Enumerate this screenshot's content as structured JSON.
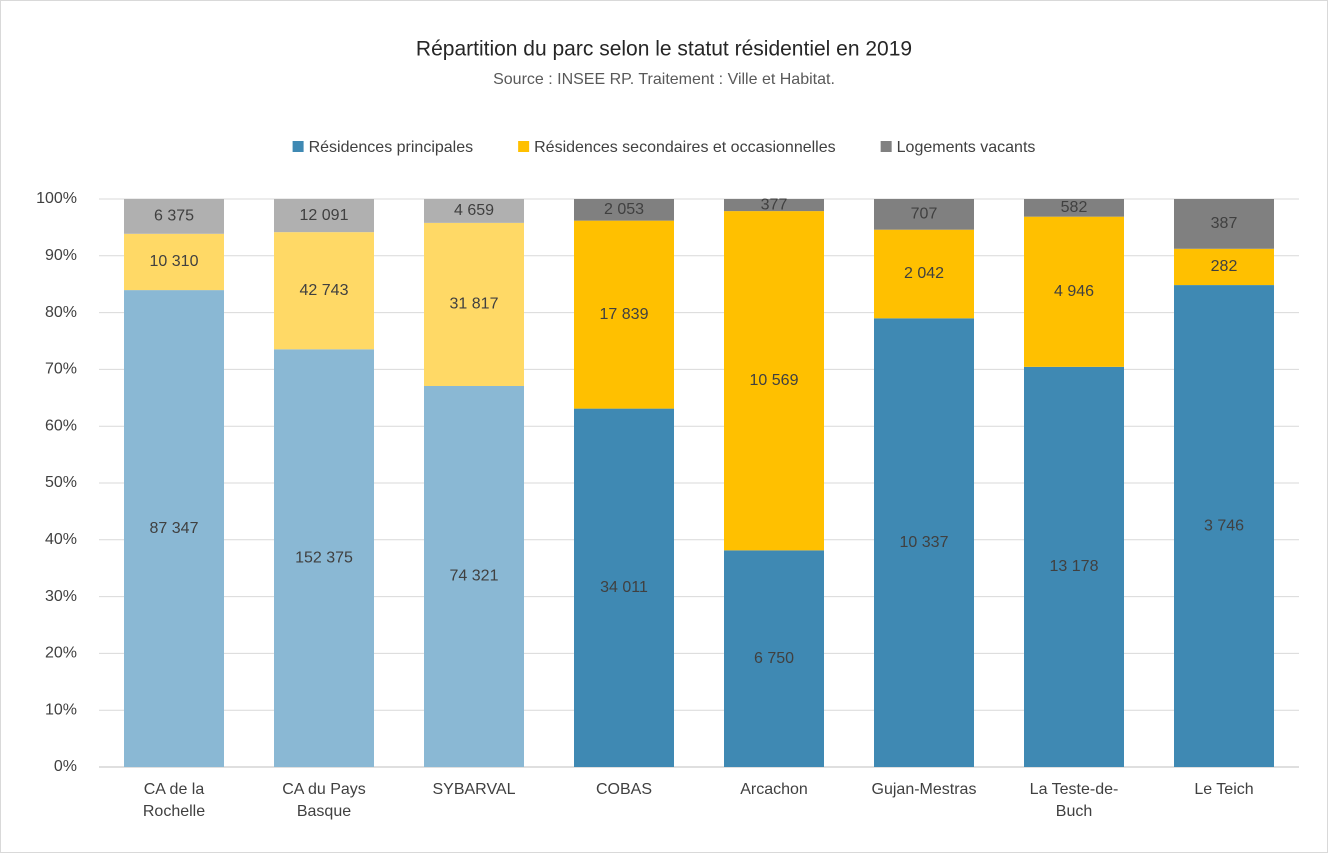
{
  "chart_data": {
    "type": "bar",
    "stacking": "percent",
    "title": "Répartition du parc selon le statut résidentiel en 2019",
    "subtitle": "Source : INSEE RP. Traitement : Ville et Habitat.",
    "categories": [
      "CA de la Rochelle",
      "CA du Pays Basque",
      "SYBARVAL",
      "COBAS",
      "Arcachon",
      "Gujan-Mestras",
      "La Teste-de-Buch",
      "Le Teich"
    ],
    "series": [
      {
        "name": "Résidences principales",
        "color": "#3f89b3",
        "colors": [
          "#8ab8d4",
          "#8ab8d4",
          "#8ab8d4",
          "#3f89b3",
          "#3f89b3",
          "#3f89b3",
          "#3f89b3",
          "#3f89b3"
        ],
        "values": [
          87347,
          152375,
          74321,
          34011,
          6750,
          10337,
          13178,
          3746
        ],
        "value_labels": [
          "87 347",
          "152 375",
          "74 321",
          "34 011",
          "6 750",
          "10 337",
          "13 178",
          "3 746"
        ]
      },
      {
        "name": "Résidences secondaires et occasionnelles",
        "color": "#ffc000",
        "colors": [
          "#ffd966",
          "#ffd966",
          "#ffd966",
          "#ffc000",
          "#ffc000",
          "#ffc000",
          "#ffc000",
          "#ffc000"
        ],
        "values": [
          10310,
          42743,
          31817,
          17839,
          10569,
          2042,
          4946,
          282
        ],
        "value_labels": [
          "10 310",
          "42 743",
          "31 817",
          "17 839",
          "10 569",
          "2 042",
          "4 946",
          "282"
        ]
      },
      {
        "name": "Logements vacants",
        "color": "#808080",
        "colors": [
          "#b0b0b0",
          "#b0b0b0",
          "#b0b0b0",
          "#808080",
          "#808080",
          "#808080",
          "#808080",
          "#808080"
        ],
        "values": [
          6375,
          12091,
          4659,
          2053,
          377,
          707,
          582,
          387
        ],
        "value_labels": [
          "6 375",
          "12 091",
          "4 659",
          "2 053",
          "377",
          "707",
          "582",
          "387"
        ]
      }
    ],
    "ylim": [
      0,
      100
    ],
    "yticks": [
      {
        "value": 0,
        "label": "0%"
      },
      {
        "value": 10,
        "label": "10%"
      },
      {
        "value": 20,
        "label": "20%"
      },
      {
        "value": 30,
        "label": "30%"
      },
      {
        "value": 40,
        "label": "40%"
      },
      {
        "value": 50,
        "label": "50%"
      },
      {
        "value": 60,
        "label": "60%"
      },
      {
        "value": 70,
        "label": "70%"
      },
      {
        "value": 80,
        "label": "80%"
      },
      {
        "value": 90,
        "label": "90%"
      },
      {
        "value": 100,
        "label": "100%"
      }
    ],
    "grid": true,
    "legend": "top"
  }
}
